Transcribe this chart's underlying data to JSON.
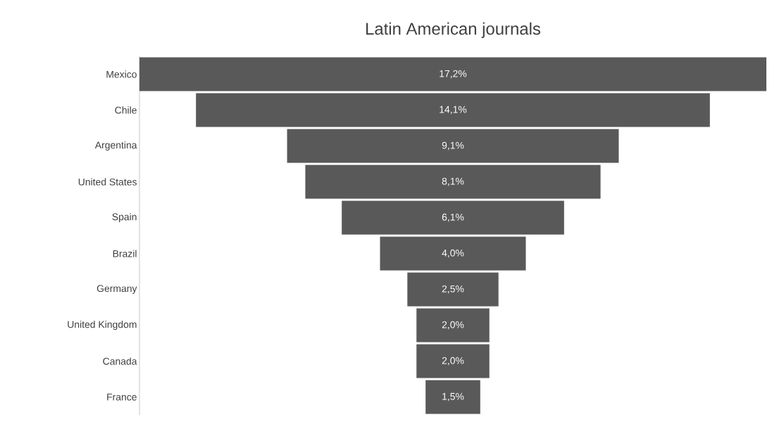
{
  "chart_data": {
    "type": "other",
    "title": "Latin American journals",
    "categories": [
      "Mexico",
      "Chile",
      "Argentina",
      "United States",
      "Spain",
      "Brazil",
      "Germany",
      "United Kingdom",
      "Canada",
      "France"
    ],
    "values": [
      17.2,
      14.1,
      9.1,
      8.1,
      6.1,
      4.0,
      2.5,
      2.0,
      2.0,
      1.5
    ],
    "value_labels": [
      "17,2%",
      "14,1%",
      "9,1%",
      "8,1%",
      "6,1%",
      "4,0%",
      "2,5%",
      "2,0%",
      "2,0%",
      "1,5%"
    ],
    "color": "#595959"
  }
}
